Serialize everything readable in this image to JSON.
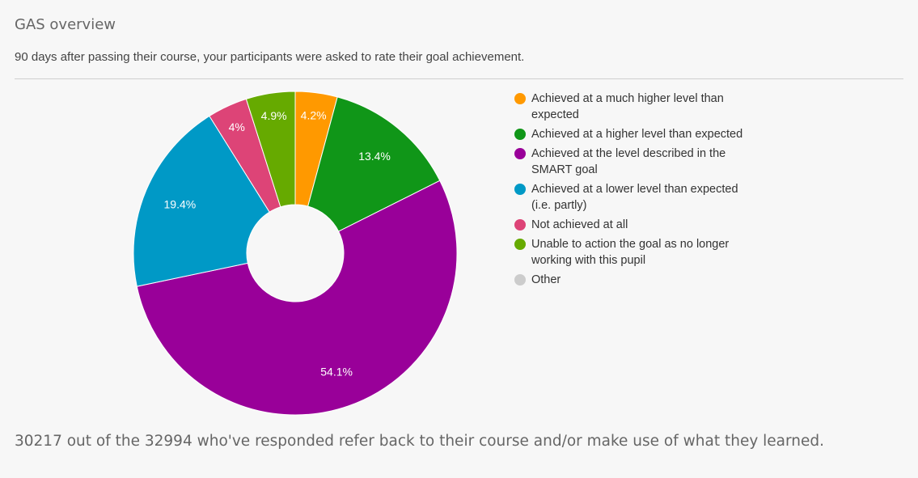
{
  "header": {
    "title": "GAS overview",
    "subtitle": "90 days after passing their course, your participants were asked to rate their goal achievement."
  },
  "footer": {
    "text": "30217 out of the 32994 who've responded refer back to their course and/or make use of what they learned."
  },
  "chart_data": {
    "type": "pie",
    "donut": true,
    "legend_position": "right",
    "slices": [
      {
        "label": "Achieved at a much higher level than expected",
        "value": 4.2,
        "display": "4.2%",
        "color": "#ff9900"
      },
      {
        "label": "Achieved at a higher level than expected",
        "value": 13.4,
        "display": "13.4%",
        "color": "#109618"
      },
      {
        "label": "Achieved at the level described in the SMART goal",
        "value": 54.1,
        "display": "54.1%",
        "color": "#990099"
      },
      {
        "label": "Achieved at a lower level than expected (i.e. partly)",
        "value": 19.4,
        "display": "19.4%",
        "color": "#0099c6"
      },
      {
        "label": "Not achieved at all",
        "value": 4.0,
        "display": "4%",
        "color": "#dd4477"
      },
      {
        "label": "Unable to action the goal as no longer working with this pupil",
        "value": 4.9,
        "display": "4.9%",
        "color": "#66aa00"
      },
      {
        "label": "Other",
        "value": 0,
        "display": "",
        "color": "#cccccc"
      }
    ]
  }
}
